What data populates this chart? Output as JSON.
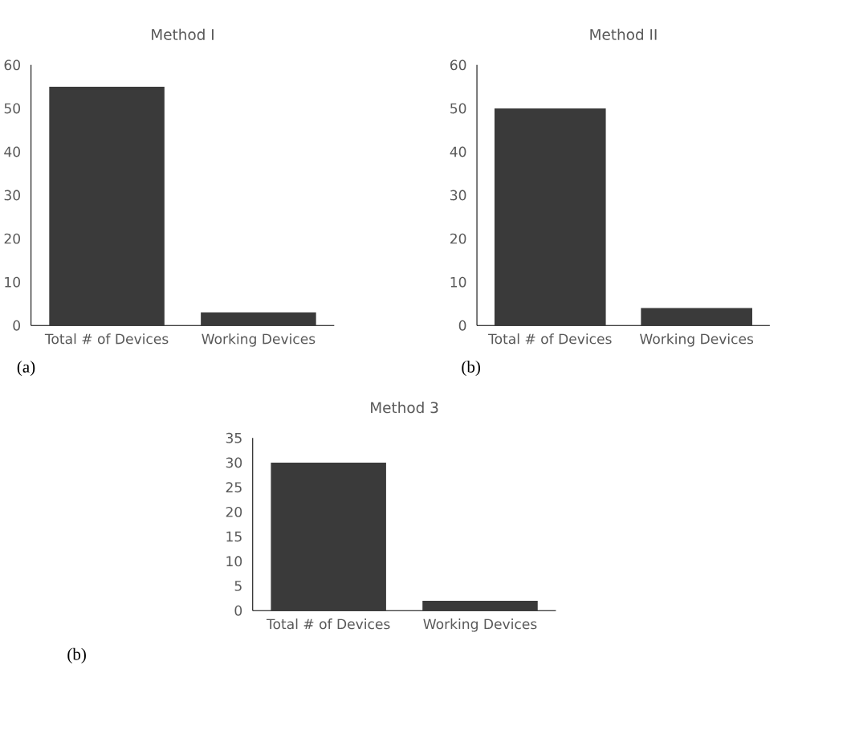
{
  "chart_data": [
    {
      "type": "bar",
      "title": "Method I",
      "categories": [
        "Total # of Devices",
        "Working Devices"
      ],
      "values": [
        55,
        3
      ],
      "color": "#3a3a3a",
      "ylim": [
        0,
        60
      ],
      "yticks": [
        0,
        10,
        20,
        30,
        40,
        50,
        60
      ],
      "annotations": [
        "(a)"
      ]
    },
    {
      "type": "bar",
      "title": "Method II",
      "categories": [
        "Total # of Devices",
        "Working Devices"
      ],
      "values": [
        50,
        4
      ],
      "color": "#3a3a3a",
      "ylim": [
        0,
        60
      ],
      "yticks": [
        0,
        10,
        20,
        30,
        40,
        50,
        60
      ],
      "annotations": [
        "(b)"
      ]
    },
    {
      "type": "bar",
      "title": "Method 3",
      "categories": [
        "Total # of Devices",
        "Working Devices"
      ],
      "values": [
        30,
        2
      ],
      "color": "#3a3a3a",
      "ylim": [
        0,
        35
      ],
      "yticks": [
        0,
        5,
        10,
        15,
        20,
        25,
        30,
        35
      ],
      "annotations": [
        "(b)"
      ]
    }
  ]
}
